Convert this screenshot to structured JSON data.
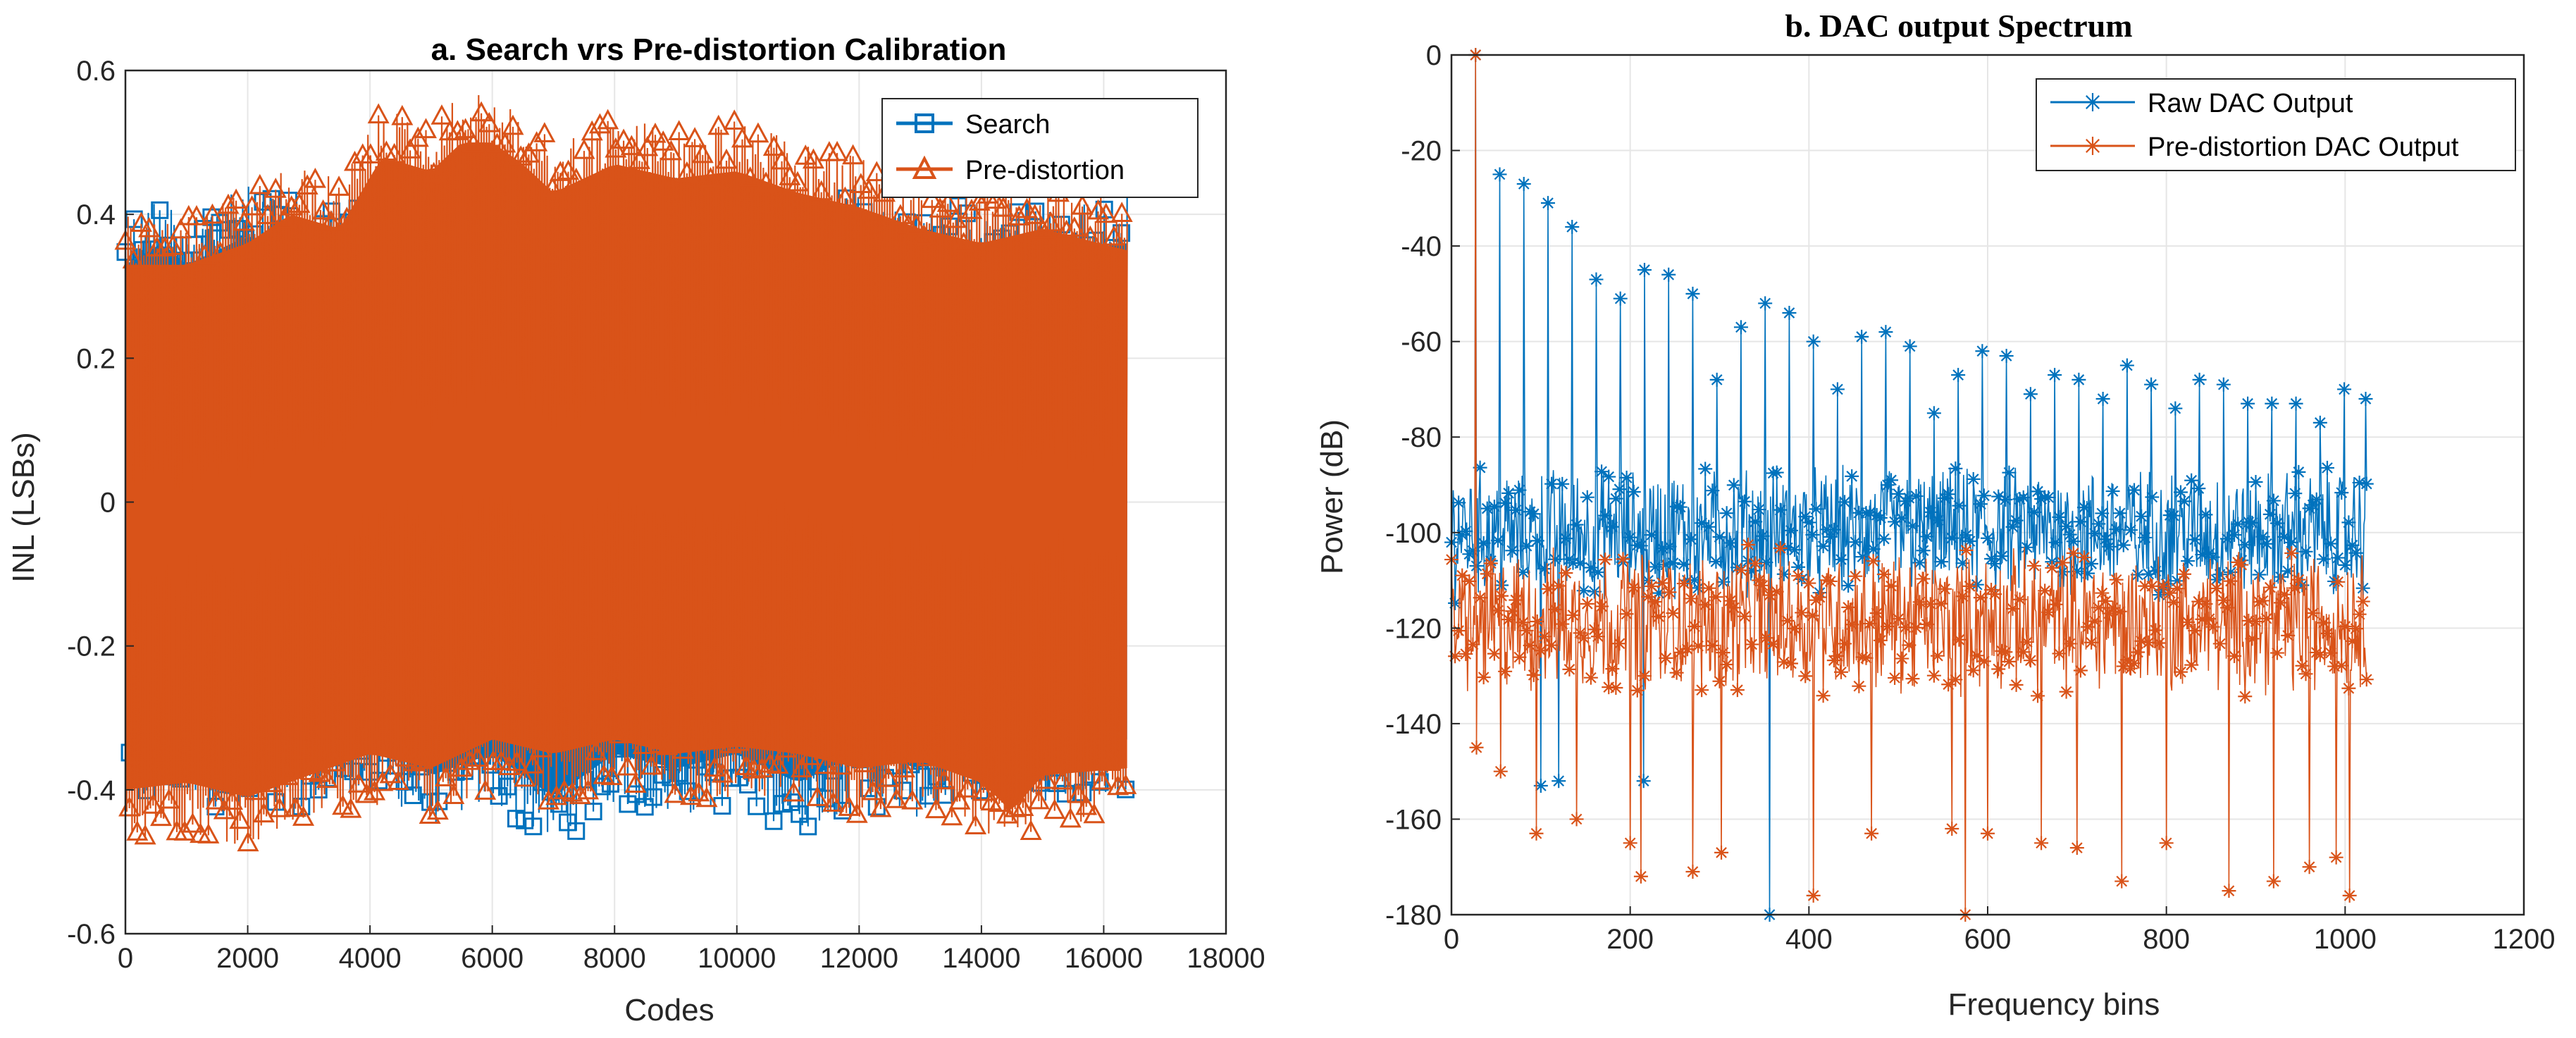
{
  "colors": {
    "search": "#0072BD",
    "predistortion": "#D95319",
    "grid": "#e6e6e6",
    "axis": "#262626"
  },
  "chart_data": [
    {
      "type": "line",
      "title": "a. Search vrs Pre-distortion Calibration",
      "xlabel": "Codes",
      "ylabel": "INL (LSBs)",
      "xlim": [
        0,
        18000
      ],
      "ylim": [
        -0.6,
        0.6
      ],
      "xticks": [
        0,
        2000,
        4000,
        6000,
        8000,
        10000,
        12000,
        14000,
        16000,
        18000
      ],
      "yticks": [
        -0.6,
        -0.4,
        -0.2,
        0,
        0.2,
        0.4,
        0.6
      ],
      "x_tick_labels": [
        "0",
        "2000",
        "4000",
        "6000",
        "8000",
        "10000",
        "12000",
        "14000",
        "16000",
        "18000"
      ],
      "y_tick_labels": [
        "-0.6",
        "-0.4",
        "-0.2",
        "0",
        "0.2",
        "0.4",
        "0.6"
      ],
      "grid": true,
      "legend_position": "top-right",
      "series": [
        {
          "name": "Search",
          "marker": "square",
          "x_range": [
            0,
            16383
          ],
          "upper_envelope": [
            [
              0,
              0.4
            ],
            [
              600,
              0.43
            ],
            [
              1000,
              0.4
            ],
            [
              2000,
              0.44
            ],
            [
              3000,
              0.41
            ],
            [
              4000,
              0.42
            ],
            [
              5000,
              0.43
            ],
            [
              6000,
              0.45
            ],
            [
              7000,
              0.43
            ],
            [
              8000,
              0.44
            ],
            [
              9000,
              0.44
            ],
            [
              10000,
              0.44
            ],
            [
              11000,
              0.42
            ],
            [
              12000,
              0.43
            ],
            [
              13000,
              0.4
            ],
            [
              14000,
              0.42
            ],
            [
              15000,
              0.41
            ],
            [
              16383,
              0.43
            ]
          ],
          "lower_envelope": [
            [
              0,
              -0.43
            ],
            [
              1000,
              -0.4
            ],
            [
              2000,
              -0.45
            ],
            [
              3000,
              -0.42
            ],
            [
              4000,
              -0.4
            ],
            [
              5000,
              -0.45
            ],
            [
              6000,
              -0.42
            ],
            [
              7000,
              -0.48
            ],
            [
              8000,
              -0.42
            ],
            [
              9000,
              -0.44
            ],
            [
              10000,
              -0.42
            ],
            [
              11000,
              -0.46
            ],
            [
              12000,
              -0.42
            ],
            [
              13000,
              -0.44
            ],
            [
              14000,
              -0.41
            ],
            [
              15000,
              -0.42
            ],
            [
              16383,
              -0.4
            ]
          ]
        },
        {
          "name": "Pre-distortion",
          "marker": "triangle",
          "x_range": [
            0,
            16383
          ],
          "upper_envelope": [
            [
              0,
              0.4
            ],
            [
              1000,
              0.4
            ],
            [
              2000,
              0.43
            ],
            [
              2700,
              0.47
            ],
            [
              3500,
              0.45
            ],
            [
              4200,
              0.55
            ],
            [
              5000,
              0.53
            ],
            [
              5500,
              0.57
            ],
            [
              6000,
              0.57
            ],
            [
              6500,
              0.54
            ],
            [
              7000,
              0.5
            ],
            [
              8000,
              0.54
            ],
            [
              9000,
              0.52
            ],
            [
              10000,
              0.53
            ],
            [
              11000,
              0.5
            ],
            [
              12000,
              0.48
            ],
            [
              13000,
              0.45
            ],
            [
              14000,
              0.43
            ],
            [
              15000,
              0.45
            ],
            [
              16383,
              0.42
            ]
          ],
          "lower_envelope": [
            [
              0,
              -0.47
            ],
            [
              1000,
              -0.46
            ],
            [
              2000,
              -0.48
            ],
            [
              3000,
              -0.45
            ],
            [
              4000,
              -0.42
            ],
            [
              5000,
              -0.44
            ],
            [
              6000,
              -0.4
            ],
            [
              7000,
              -0.42
            ],
            [
              8000,
              -0.4
            ],
            [
              9000,
              -0.42
            ],
            [
              10000,
              -0.41
            ],
            [
              11000,
              -0.42
            ],
            [
              12000,
              -0.44
            ],
            [
              13000,
              -0.43
            ],
            [
              14000,
              -0.46
            ],
            [
              14500,
              -0.5
            ],
            [
              15000,
              -0.45
            ],
            [
              16383,
              -0.44
            ]
          ]
        }
      ]
    },
    {
      "type": "line",
      "title": "b. DAC output Spectrum",
      "xlabel": "Frequency bins",
      "ylabel": "Power (dB)",
      "xlim": [
        0,
        1200
      ],
      "ylim": [
        -180,
        0
      ],
      "xticks": [
        0,
        200,
        400,
        600,
        800,
        1000,
        1200
      ],
      "yticks": [
        -180,
        -160,
        -140,
        -120,
        -100,
        -80,
        -60,
        -40,
        -20,
        0
      ],
      "x_tick_labels": [
        "0",
        "200",
        "400",
        "600",
        "800",
        "1000",
        "1200"
      ],
      "y_tick_labels": [
        "-180",
        "-160",
        "-140",
        "-120",
        "-100",
        "-80",
        "-60",
        "-40",
        "-20",
        "0"
      ],
      "grid": true,
      "legend_position": "top-right",
      "series": [
        {
          "name": "Raw DAC Output",
          "marker": "asterisk",
          "x_range": [
            0,
            1024
          ],
          "fundamental": {
            "x": 27,
            "y": 0
          },
          "harmonic_peaks": [
            [
              54,
              -25
            ],
            [
              81,
              -27
            ],
            [
              108,
              -31
            ],
            [
              135,
              -36
            ],
            [
              162,
              -47
            ],
            [
              189,
              -51
            ],
            [
              216,
              -45
            ],
            [
              243,
              -46
            ],
            [
              270,
              -50
            ],
            [
              297,
              -68
            ],
            [
              324,
              -57
            ],
            [
              351,
              -52
            ],
            [
              378,
              -54
            ],
            [
              405,
              -60
            ],
            [
              432,
              -70
            ],
            [
              459,
              -59
            ],
            [
              486,
              -58
            ],
            [
              513,
              -61
            ],
            [
              540,
              -75
            ],
            [
              567,
              -67
            ],
            [
              594,
              -62
            ],
            [
              621,
              -63
            ],
            [
              648,
              -71
            ],
            [
              675,
              -67
            ],
            [
              702,
              -68
            ],
            [
              729,
              -72
            ],
            [
              756,
              -65
            ],
            [
              783,
              -69
            ],
            [
              810,
              -74
            ],
            [
              837,
              -68
            ],
            [
              864,
              -69
            ],
            [
              891,
              -73
            ],
            [
              918,
              -73
            ],
            [
              945,
              -73
            ],
            [
              972,
              -77
            ],
            [
              999,
              -70
            ],
            [
              1023,
              -72
            ]
          ],
          "noise_floor_range": [
            -115,
            -85
          ],
          "low_dips": [
            [
              356,
              -180
            ],
            [
              100,
              -153
            ],
            [
              120,
              -152
            ],
            [
              215,
              -152
            ]
          ]
        },
        {
          "name": "Pre-distortion DAC Output",
          "marker": "asterisk",
          "x_range": [
            0,
            1024
          ],
          "fundamental": {
            "x": 27,
            "y": 0
          },
          "noise_floor_range": [
            -135,
            -102
          ],
          "low_dips": [
            [
              28,
              -145
            ],
            [
              55,
              -150
            ],
            [
              95,
              -163
            ],
            [
              140,
              -160
            ],
            [
              200,
              -165
            ],
            [
              212,
              -172
            ],
            [
              270,
              -171
            ],
            [
              302,
              -167
            ],
            [
              405,
              -176
            ],
            [
              470,
              -163
            ],
            [
              560,
              -162
            ],
            [
              575,
              -180
            ],
            [
              600,
              -163
            ],
            [
              660,
              -165
            ],
            [
              700,
              -166
            ],
            [
              750,
              -173
            ],
            [
              800,
              -165
            ],
            [
              870,
              -175
            ],
            [
              920,
              -173
            ],
            [
              960,
              -170
            ],
            [
              990,
              -168
            ],
            [
              1005,
              -176
            ]
          ]
        }
      ]
    }
  ]
}
